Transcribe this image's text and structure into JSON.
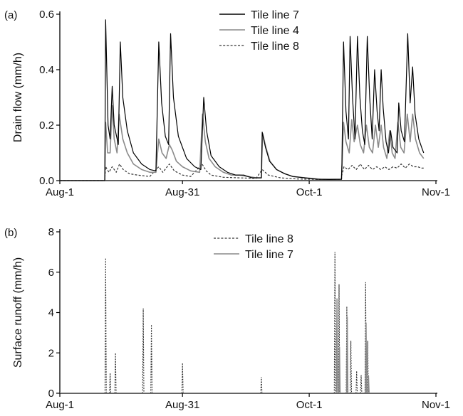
{
  "chart_data": [
    {
      "panel_label": "(a)",
      "type": "line",
      "ylabel": "Drain flow (mm/h)",
      "xlabel": "",
      "xlim": [
        0,
        92
      ],
      "ylim": [
        0,
        0.6
      ],
      "yticks": [
        "0.0",
        "0.2",
        "0.4",
        "0.6"
      ],
      "xtick_positions": [
        0,
        30,
        61,
        92
      ],
      "xtick_labels": [
        "Aug-1",
        "Aug-31",
        "Oct-1",
        "Nov-1"
      ],
      "legend_position": "top-center",
      "series": [
        {
          "name": "Tile line 7",
          "color": "#000000",
          "dash": "solid",
          "points": [
            [
              0,
              0
            ],
            [
              11.0,
              0
            ],
            [
              11.2,
              0.58
            ],
            [
              11.8,
              0.2
            ],
            [
              12.3,
              0.15
            ],
            [
              12.8,
              0.34
            ],
            [
              13.3,
              0.2
            ],
            [
              14.3,
              0.13
            ],
            [
              14.8,
              0.5
            ],
            [
              15.4,
              0.3
            ],
            [
              16.5,
              0.18
            ],
            [
              18,
              0.1
            ],
            [
              20,
              0.06
            ],
            [
              22,
              0.04
            ],
            [
              23.5,
              0.035
            ],
            [
              24.2,
              0.5
            ],
            [
              24.9,
              0.28
            ],
            [
              25.8,
              0.16
            ],
            [
              26.6,
              0.13
            ],
            [
              27.1,
              0.53
            ],
            [
              27.8,
              0.3
            ],
            [
              29,
              0.16
            ],
            [
              31,
              0.08
            ],
            [
              33,
              0.05
            ],
            [
              34.5,
              0.04
            ],
            [
              35.2,
              0.3
            ],
            [
              35.9,
              0.18
            ],
            [
              37,
              0.09
            ],
            [
              39,
              0.05
            ],
            [
              41,
              0.03
            ],
            [
              43,
              0.02
            ],
            [
              45,
              0.02
            ],
            [
              46,
              0.015
            ],
            [
              47,
              0.01
            ],
            [
              48,
              0.01
            ],
            [
              49.3,
              0.01
            ],
            [
              49.5,
              0.175
            ],
            [
              50.3,
              0.12
            ],
            [
              51.3,
              0.07
            ],
            [
              53,
              0.04
            ],
            [
              55,
              0.025
            ],
            [
              57,
              0.015
            ],
            [
              60,
              0.01
            ],
            [
              63,
              0.005
            ],
            [
              66,
              0.004
            ],
            [
              68.9,
              0.005
            ],
            [
              69,
              0.06
            ],
            [
              69.4,
              0.5
            ],
            [
              70.0,
              0.25
            ],
            [
              70.6,
              0.15
            ],
            [
              71.0,
              0.52
            ],
            [
              71.6,
              0.3
            ],
            [
              72.2,
              0.15
            ],
            [
              72.8,
              0.52
            ],
            [
              73.4,
              0.3
            ],
            [
              74.0,
              0.18
            ],
            [
              74.6,
              0.13
            ],
            [
              75.2,
              0.52
            ],
            [
              75.8,
              0.3
            ],
            [
              76.4,
              0.15
            ],
            [
              77.0,
              0.4
            ],
            [
              77.6,
              0.25
            ],
            [
              78.1,
              0.18
            ],
            [
              78.6,
              0.4
            ],
            [
              79.1,
              0.26
            ],
            [
              79.8,
              0.14
            ],
            [
              80.4,
              0.1
            ],
            [
              80.9,
              0.18
            ],
            [
              81.5,
              0.12
            ],
            [
              82.5,
              0.1
            ],
            [
              82.9,
              0.28
            ],
            [
              83.5,
              0.18
            ],
            [
              84.3,
              0.14
            ],
            [
              85.1,
              0.53
            ],
            [
              85.7,
              0.28
            ],
            [
              86.3,
              0.41
            ],
            [
              86.9,
              0.24
            ],
            [
              87.8,
              0.15
            ],
            [
              88.5,
              0.12
            ],
            [
              89.0,
              0.1
            ]
          ]
        },
        {
          "name": "Tile line 4",
          "color": "#8a8a8a",
          "dash": "solid",
          "points": [
            [
              0,
              0
            ],
            [
              11.0,
              0
            ],
            [
              11.2,
              0.21
            ],
            [
              11.7,
              0.1
            ],
            [
              12.3,
              0.1
            ],
            [
              12.8,
              0.27
            ],
            [
              13.3,
              0.15
            ],
            [
              14.0,
              0.1
            ],
            [
              14.5,
              0.24
            ],
            [
              15.4,
              0.15
            ],
            [
              16.5,
              0.1
            ],
            [
              18,
              0.06
            ],
            [
              20,
              0.04
            ],
            [
              22,
              0.03
            ],
            [
              23.5,
              0.03
            ],
            [
              24.2,
              0.15
            ],
            [
              25.0,
              0.1
            ],
            [
              26.0,
              0.08
            ],
            [
              26.8,
              0.13
            ],
            [
              27.5,
              0.11
            ],
            [
              28.5,
              0.07
            ],
            [
              30,
              0.05
            ],
            [
              32,
              0.035
            ],
            [
              34.2,
              0.03
            ],
            [
              34.9,
              0.24
            ],
            [
              35.6,
              0.14
            ],
            [
              36.5,
              0.08
            ],
            [
              38,
              0.05
            ],
            [
              40,
              0.03
            ],
            [
              42,
              0.02
            ],
            [
              44,
              0.02
            ],
            [
              46,
              0.015
            ],
            [
              48,
              0.01
            ],
            [
              49.3,
              0.01
            ],
            [
              49.6,
              0.17
            ],
            [
              50.4,
              0.12
            ],
            [
              51.4,
              0.07
            ],
            [
              53,
              0.04
            ],
            [
              55,
              0.025
            ],
            [
              57,
              0.015
            ],
            [
              60,
              0.01
            ],
            [
              64,
              0.005
            ],
            [
              68.9,
              0.005
            ],
            [
              69,
              0.04
            ],
            [
              69.4,
              0.21
            ],
            [
              70.0,
              0.14
            ],
            [
              70.8,
              0.1
            ],
            [
              71.4,
              0.22
            ],
            [
              72.0,
              0.14
            ],
            [
              72.8,
              0.2
            ],
            [
              73.5,
              0.13
            ],
            [
              74.3,
              0.1
            ],
            [
              75.0,
              0.2
            ],
            [
              75.7,
              0.12
            ],
            [
              76.5,
              0.1
            ],
            [
              77.2,
              0.2
            ],
            [
              77.9,
              0.12
            ],
            [
              78.6,
              0.2
            ],
            [
              79.2,
              0.12
            ],
            [
              80.0,
              0.08
            ],
            [
              80.7,
              0.18
            ],
            [
              81.3,
              0.1
            ],
            [
              82.0,
              0.08
            ],
            [
              82.7,
              0.21
            ],
            [
              83.4,
              0.12
            ],
            [
              84.2,
              0.1
            ],
            [
              85.0,
              0.24
            ],
            [
              85.7,
              0.14
            ],
            [
              86.3,
              0.24
            ],
            [
              87.0,
              0.15
            ],
            [
              88.0,
              0.1
            ],
            [
              89.0,
              0.08
            ]
          ]
        },
        {
          "name": "Tile line 8",
          "color": "#333333",
          "dash": "dotted",
          "points": [
            [
              0,
              0
            ],
            [
              11.0,
              0
            ],
            [
              11.2,
              0.05
            ],
            [
              12.0,
              0.03
            ],
            [
              12.8,
              0.05
            ],
            [
              13.8,
              0.03
            ],
            [
              14.6,
              0.06
            ],
            [
              15.5,
              0.04
            ],
            [
              17,
              0.025
            ],
            [
              19,
              0.02
            ],
            [
              22,
              0.015
            ],
            [
              24.2,
              0.05
            ],
            [
              25.2,
              0.03
            ],
            [
              26.8,
              0.06
            ],
            [
              28,
              0.035
            ],
            [
              30,
              0.02
            ],
            [
              32,
              0.015
            ],
            [
              34.8,
              0.06
            ],
            [
              35.8,
              0.035
            ],
            [
              37,
              0.02
            ],
            [
              40,
              0.012
            ],
            [
              44,
              0.01
            ],
            [
              48,
              0.008
            ],
            [
              49.5,
              0.04
            ],
            [
              51,
              0.02
            ],
            [
              54,
              0.01
            ],
            [
              58,
              0.006
            ],
            [
              64,
              0.004
            ],
            [
              68.9,
              0.004
            ],
            [
              69,
              0.02
            ],
            [
              69.5,
              0.05
            ],
            [
              70.5,
              0.04
            ],
            [
              71.5,
              0.055
            ],
            [
              72.5,
              0.04
            ],
            [
              73.5,
              0.06
            ],
            [
              74.5,
              0.04
            ],
            [
              75.5,
              0.055
            ],
            [
              76.5,
              0.04
            ],
            [
              77.5,
              0.05
            ],
            [
              78.5,
              0.04
            ],
            [
              79.5,
              0.05
            ],
            [
              80.5,
              0.04
            ],
            [
              81.5,
              0.05
            ],
            [
              82.5,
              0.045
            ],
            [
              83.5,
              0.06
            ],
            [
              84.5,
              0.045
            ],
            [
              85.5,
              0.06
            ],
            [
              86.5,
              0.05
            ],
            [
              87.5,
              0.05
            ],
            [
              88.5,
              0.045
            ],
            [
              89.0,
              0.045
            ]
          ]
        }
      ]
    },
    {
      "panel_label": "(b)",
      "type": "line",
      "ylabel": "Surface runoff  (mm/h)",
      "xlabel": "",
      "xlim": [
        0,
        92
      ],
      "ylim": [
        0,
        8
      ],
      "yticks": [
        "0",
        "2",
        "4",
        "6",
        "8"
      ],
      "xtick_positions": [
        0,
        30,
        61,
        92
      ],
      "xtick_labels": [
        "Aug-1",
        "Aug-31",
        "Oct-1",
        "Nov-1"
      ],
      "legend_position": "top-center",
      "series": [
        {
          "name": "Tile line 8",
          "color": "#333333",
          "dash": "dotted",
          "spikes": [
            [
              11.2,
              6.7
            ],
            [
              12.3,
              1.0
            ],
            [
              13.6,
              2.0
            ],
            [
              20.4,
              4.2
            ],
            [
              22.4,
              3.4
            ],
            [
              30.0,
              1.5
            ],
            [
              49.3,
              0.8
            ],
            [
              67.3,
              7.0
            ],
            [
              68.3,
              5.4
            ],
            [
              70.2,
              4.3
            ],
            [
              71.2,
              2.6
            ],
            [
              72.6,
              1.1
            ],
            [
              73.7,
              0.9
            ],
            [
              74.8,
              5.5
            ],
            [
              75.3,
              2.6
            ]
          ]
        },
        {
          "name": "Tile line 7",
          "color": "#8a8a8a",
          "dash": "solid",
          "spikes": [
            [
              67.8,
              4.7
            ],
            [
              68.4,
              2.3
            ],
            [
              70.3,
              3.8
            ],
            [
              74.9,
              3.5
            ],
            [
              75.5,
              0.9
            ]
          ]
        }
      ]
    }
  ]
}
